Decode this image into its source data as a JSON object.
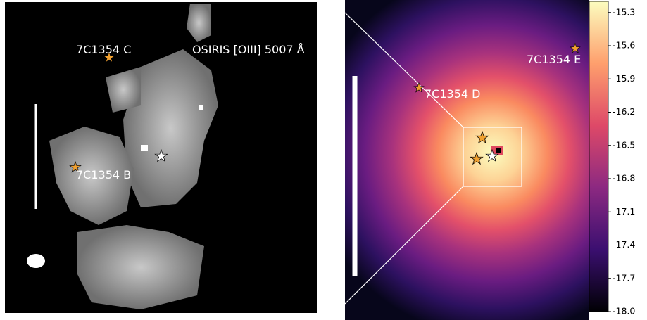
{
  "chart_data": [
    {
      "type": "image",
      "annotations": [
        "7C1354 C",
        "OSIRIS [OIII] 5007 Å",
        "7C1354 B"
      ]
    },
    {
      "type": "image",
      "annotations": [
        "7C1354 D",
        "7C1354 E"
      ],
      "colorbar": {
        "lim": [
          -18,
          -15.2
        ],
        "ticks": [
          -15.3,
          -15.6,
          -15.9,
          -16.2,
          -16.5,
          -16.8,
          -17.1,
          -17.4,
          -17.7,
          {
            "value": -18,
            "label": "-18.0"
          }
        ]
      }
    }
  ]
}
